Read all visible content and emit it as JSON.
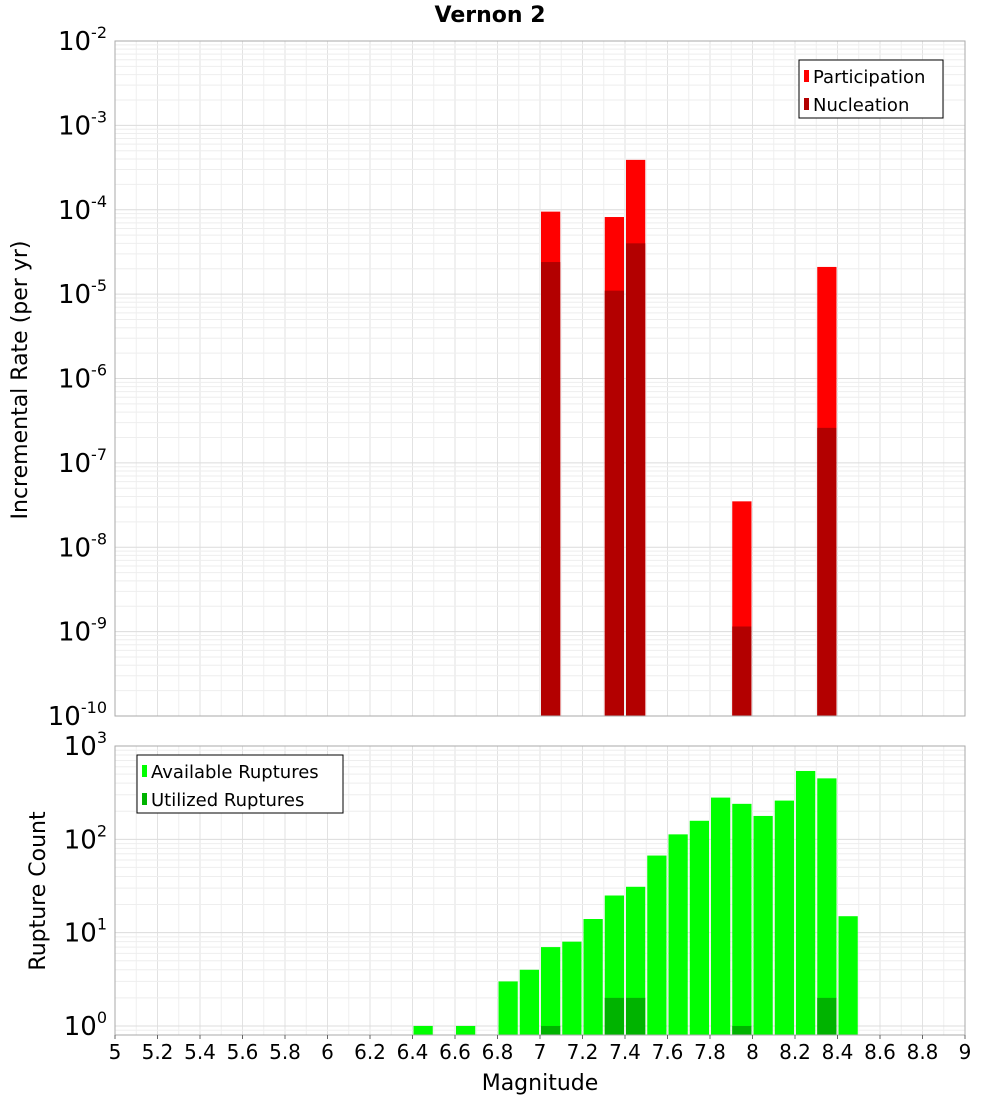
{
  "chart_data": [
    {
      "type": "bar",
      "title": "Vernon 2",
      "xlabel": "",
      "ylabel": "Incremental Rate (per yr)",
      "xlim": [
        5,
        9
      ],
      "ylim": [
        1e-10,
        0.01
      ],
      "yscale": "log",
      "y_tick_exponents": [
        "-10",
        "-9",
        "-8",
        "-7",
        "-6",
        "-5",
        "-4",
        "-3",
        "-2"
      ],
      "y_tick_base": "10",
      "bin_width": 0.1,
      "legend": {
        "placement": "top-right",
        "entries": [
          "Participation",
          "Nucleation"
        ]
      },
      "series": [
        {
          "name": "Participation",
          "color": "#ff0000",
          "x": [
            7.05,
            7.35,
            7.45,
            7.95,
            8.35
          ],
          "values": [
            9.5e-05,
            8.2e-05,
            0.00039,
            3.5e-08,
            2.1e-05
          ]
        },
        {
          "name": "Nucleation",
          "color": "#b30000",
          "x": [
            7.05,
            7.35,
            7.45,
            7.95,
            8.35
          ],
          "values": [
            2.4e-05,
            1.1e-05,
            4e-05,
            1.15e-09,
            2.6e-07
          ]
        }
      ]
    },
    {
      "type": "bar",
      "title": "",
      "xlabel": "Magnitude",
      "ylabel": "Rupture Count",
      "xlim": [
        5,
        9
      ],
      "ylim": [
        0.8,
        1000
      ],
      "yscale": "log",
      "y_tick_exponents": [
        "0",
        "1",
        "2",
        "3"
      ],
      "y_tick_base": "10",
      "x_tick_labels": [
        "5",
        "5.2",
        "5.4",
        "5.6",
        "5.8",
        "6",
        "6.2",
        "6.4",
        "6.6",
        "6.8",
        "7",
        "7.2",
        "7.4",
        "7.6",
        "7.8",
        "8",
        "8.2",
        "8.4",
        "8.6",
        "8.8",
        "9"
      ],
      "bin_width": 0.1,
      "legend": {
        "placement": "top-left",
        "entries": [
          "Available Ruptures",
          "Utilized Ruptures"
        ]
      },
      "series": [
        {
          "name": "Available Ruptures",
          "color": "#00ff00",
          "x": [
            6.45,
            6.65,
            6.85,
            6.95,
            7.05,
            7.15,
            7.25,
            7.35,
            7.45,
            7.55,
            7.65,
            7.75,
            7.85,
            7.95,
            8.05,
            8.15,
            8.25,
            8.35,
            8.45
          ],
          "values": [
            1,
            1,
            3,
            4,
            7,
            8,
            14,
            25,
            31,
            67,
            113,
            158,
            280,
            240,
            178,
            260,
            540,
            450,
            15
          ]
        },
        {
          "name": "Utilized Ruptures",
          "color": "#00b300",
          "x": [
            7.05,
            7.35,
            7.45,
            7.95,
            8.35
          ],
          "values": [
            1,
            2,
            2,
            1,
            2
          ]
        }
      ]
    }
  ]
}
